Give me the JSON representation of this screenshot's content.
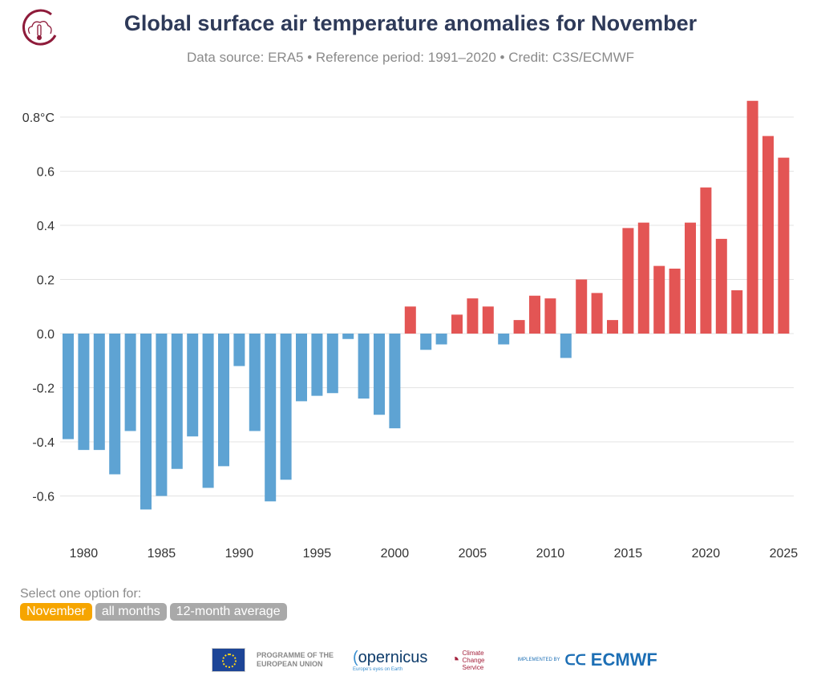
{
  "header": {
    "title": "Global surface air temperature anomalies for November",
    "subtitle": "Data source: ERA5 • Reference period: 1991–2020 • Credit: C3S/ECMWF",
    "logo_icon": "climate-cloud-thermometer-icon"
  },
  "colors": {
    "positive": "#e35554",
    "negative": "#5ea3d3",
    "active_option": "#f6a500",
    "inactive_option": "#a9a9a9",
    "title": "#2e3a59"
  },
  "chart_data": {
    "type": "bar",
    "title": "Global surface air temperature anomalies for November",
    "xlabel": "",
    "ylabel": "",
    "ylim": [
      -0.7,
      0.85
    ],
    "grid": true,
    "yticks": [
      {
        "v": 0.8,
        "label": "0.8°C"
      },
      {
        "v": 0.6,
        "label": "0.6"
      },
      {
        "v": 0.4,
        "label": "0.4"
      },
      {
        "v": 0.2,
        "label": "0.2"
      },
      {
        "v": 0,
        "label": "0.0"
      },
      {
        "v": -0.2,
        "label": "-0.2"
      },
      {
        "v": -0.4,
        "label": "-0.4"
      },
      {
        "v": -0.6,
        "label": "-0.6"
      }
    ],
    "xticks": [
      "1980",
      "1985",
      "1990",
      "1995",
      "2000",
      "2005",
      "2010",
      "2015",
      "2020",
      "2025"
    ],
    "categories": [
      1979,
      1980,
      1981,
      1982,
      1983,
      1984,
      1985,
      1986,
      1987,
      1988,
      1989,
      1990,
      1991,
      1992,
      1993,
      1994,
      1995,
      1996,
      1997,
      1998,
      1999,
      2000,
      2001,
      2002,
      2003,
      2004,
      2005,
      2006,
      2007,
      2008,
      2009,
      2010,
      2011,
      2012,
      2013,
      2014,
      2015,
      2016,
      2017,
      2018,
      2019,
      2020,
      2021,
      2022,
      2023,
      2024,
      2025
    ],
    "values": [
      -0.39,
      -0.43,
      -0.43,
      -0.52,
      -0.36,
      -0.65,
      -0.6,
      -0.5,
      -0.38,
      -0.57,
      -0.49,
      -0.12,
      -0.36,
      -0.62,
      -0.54,
      -0.25,
      -0.23,
      -0.22,
      -0.02,
      -0.24,
      -0.3,
      -0.35,
      0.1,
      -0.06,
      -0.04,
      0.07,
      0.13,
      0.1,
      -0.04,
      0.05,
      0.14,
      0.13,
      -0.09,
      0.2,
      0.15,
      0.05,
      0.39,
      0.41,
      0.25,
      0.24,
      0.41,
      0.54,
      0.35,
      0.16,
      0.86,
      0.73,
      0.65
    ]
  },
  "controls": {
    "label": "Select one option for:",
    "options": [
      {
        "label": "November",
        "active": true
      },
      {
        "label": "all months",
        "active": false
      },
      {
        "label": "12-month average",
        "active": false
      }
    ]
  },
  "footer": {
    "eu": "PROGRAMME OF THE EUROPEAN UNION",
    "copernicus": "opernicus",
    "copernicus_tagline": "Europe's eyes on Earth",
    "c3s": "Climate Change Service",
    "implemented_by": "IMPLEMENTED BY",
    "ecmwf": "ECMWF"
  }
}
